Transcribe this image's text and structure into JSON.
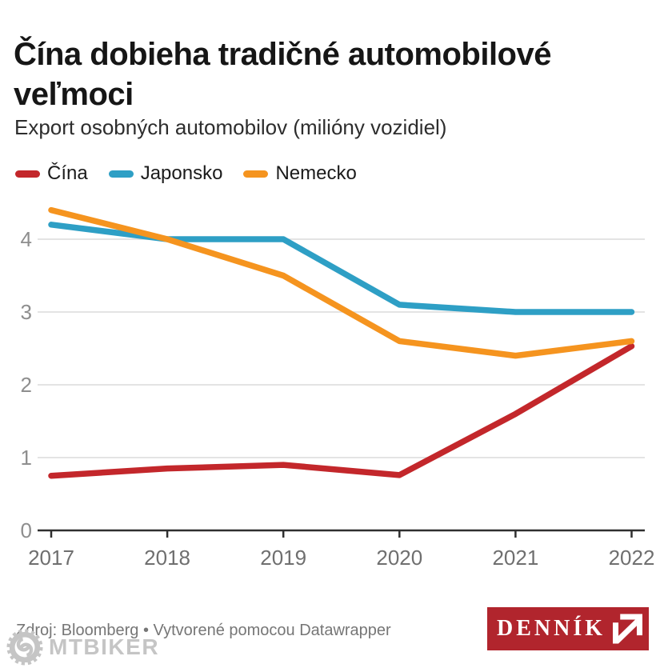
{
  "header": {
    "title": "Čína dobieha tradičné automobilové veľmoci",
    "subtitle": "Export osobných automobilov (milióny vozidiel)"
  },
  "legend": [
    {
      "label": "Čína",
      "color": "#c3272b"
    },
    {
      "label": "Japonsko",
      "color": "#2e9fc5"
    },
    {
      "label": "Nemecko",
      "color": "#f5941f"
    }
  ],
  "chart_data": {
    "type": "line",
    "title": "Čína dobieha tradičné automobilové veľmoci",
    "subtitle": "Export osobných automobilov (milióny vozidiel)",
    "x": [
      2017,
      2018,
      2019,
      2020,
      2021,
      2022
    ],
    "series": [
      {
        "name": "Čína",
        "color": "#c3272b",
        "values": [
          0.75,
          0.85,
          0.9,
          0.76,
          1.6,
          2.53
        ]
      },
      {
        "name": "Japonsko",
        "color": "#2e9fc5",
        "values": [
          4.2,
          4.0,
          4.0,
          3.1,
          3.0,
          3.0
        ]
      },
      {
        "name": "Nemecko",
        "color": "#f5941f",
        "values": [
          4.4,
          4.0,
          3.5,
          2.6,
          2.4,
          2.6
        ]
      }
    ],
    "xlabel": "",
    "ylabel": "",
    "ylim": [
      0,
      4.5
    ],
    "yticks": [
      0,
      1,
      2,
      3,
      4
    ],
    "grid": true,
    "legend_position": "top",
    "colors": {
      "grid": "#dcdcdc",
      "axis": "#2f2f2f",
      "ytick_label": "#8e8e8e",
      "xtick_label": "#6f6f6f"
    }
  },
  "footer": {
    "source": "Zdroj: Bloomberg • Vytvorené pomocou Datawrapper",
    "watermark": "MTBIKER",
    "logo_text": "DENNÍK",
    "logo_bg": "#b1252d"
  }
}
